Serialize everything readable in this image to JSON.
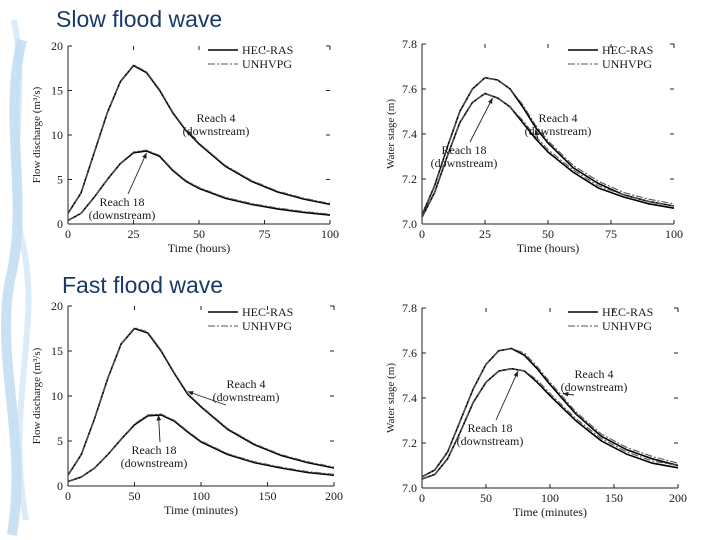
{
  "headings": {
    "slow": "Slow flood wave",
    "fast": "Fast flood wave"
  },
  "colors": {
    "heading": "#1a3a66",
    "background_swirl": "#9fc7ea",
    "hec_ras": "#000000",
    "unhvpg": "#555555"
  },
  "chart_data": [
    {
      "type": "line",
      "id": "slow-discharge",
      "xlabel": "Time (hours)",
      "ylabel": "Flow discharge (m³/s)",
      "xlim": [
        0,
        100
      ],
      "ylim": [
        0,
        20
      ],
      "xticks": [
        0,
        25,
        50,
        75,
        100
      ],
      "yticks": [
        0,
        5,
        10,
        15,
        20
      ],
      "legend_position": "top-right",
      "series": [
        {
          "name": "HEC-RAS",
          "group": "Reach 4",
          "x": [
            0,
            5,
            10,
            15,
            20,
            25,
            30,
            35,
            40,
            45,
            50,
            60,
            70,
            80,
            90,
            100
          ],
          "y": [
            1.2,
            3.5,
            8,
            12.5,
            16,
            17.8,
            17,
            15,
            12.5,
            10.5,
            9,
            6.5,
            4.8,
            3.6,
            2.8,
            2.2
          ]
        },
        {
          "name": "UNHVPG",
          "group": "Reach 4",
          "x": [
            0,
            5,
            10,
            15,
            20,
            25,
            30,
            35,
            40,
            45,
            50,
            60,
            70,
            80,
            90,
            100
          ],
          "y": [
            1.2,
            3.5,
            8,
            12.5,
            16,
            17.9,
            17.1,
            15.1,
            12.6,
            10.6,
            9.1,
            6.6,
            4.9,
            3.7,
            2.9,
            2.3
          ]
        },
        {
          "name": "HEC-RAS",
          "group": "Reach 18",
          "x": [
            0,
            5,
            10,
            15,
            20,
            25,
            30,
            35,
            40,
            45,
            50,
            60,
            70,
            80,
            90,
            100
          ],
          "y": [
            0.4,
            1.2,
            3,
            5,
            6.8,
            8,
            8.2,
            7.6,
            6,
            4.8,
            4,
            2.9,
            2.2,
            1.7,
            1.3,
            1
          ]
        },
        {
          "name": "UNHVPG",
          "group": "Reach 18",
          "x": [
            0,
            5,
            10,
            15,
            20,
            25,
            30,
            35,
            40,
            45,
            50,
            60,
            70,
            80,
            90,
            100
          ],
          "y": [
            0.4,
            1.2,
            3,
            5,
            6.8,
            8.1,
            8.3,
            7.7,
            6.1,
            4.9,
            4.1,
            3,
            2.3,
            1.8,
            1.4,
            1.1
          ]
        }
      ],
      "legend": [
        "HEC-RAS",
        "UNHVPG"
      ],
      "annotations": [
        {
          "text": [
            "Reach 4",
            "(downstream)"
          ],
          "target": [
            45,
            10.5
          ]
        },
        {
          "text": [
            "Reach 18",
            "(downstream)"
          ],
          "target": [
            30,
            8
          ]
        }
      ]
    },
    {
      "type": "line",
      "id": "slow-stage",
      "xlabel": "Time (hours)",
      "ylabel": "Water stage (m)",
      "xlim": [
        0,
        100
      ],
      "ylim": [
        7.0,
        7.8
      ],
      "xticks": [
        0,
        25,
        50,
        75,
        100
      ],
      "yticks": [
        7.0,
        7.2,
        7.4,
        7.6,
        7.8
      ],
      "legend_position": "top-right",
      "series": [
        {
          "name": "HEC-RAS",
          "group": "Reach 4",
          "x": [
            0,
            5,
            10,
            15,
            20,
            25,
            30,
            35,
            40,
            45,
            50,
            60,
            70,
            80,
            90,
            100
          ],
          "y": [
            7.04,
            7.17,
            7.34,
            7.5,
            7.6,
            7.65,
            7.64,
            7.6,
            7.52,
            7.43,
            7.36,
            7.25,
            7.18,
            7.13,
            7.1,
            7.08
          ]
        },
        {
          "name": "UNHVPG",
          "group": "Reach 4",
          "x": [
            0,
            5,
            10,
            15,
            20,
            25,
            30,
            35,
            40,
            45,
            50,
            60,
            70,
            80,
            90,
            100
          ],
          "y": [
            7.04,
            7.17,
            7.34,
            7.5,
            7.6,
            7.65,
            7.64,
            7.6,
            7.53,
            7.44,
            7.37,
            7.26,
            7.19,
            7.14,
            7.11,
            7.09
          ]
        },
        {
          "name": "HEC-RAS",
          "group": "Reach 18",
          "x": [
            0,
            5,
            10,
            15,
            20,
            25,
            30,
            35,
            40,
            45,
            50,
            60,
            70,
            80,
            90,
            100
          ],
          "y": [
            7.03,
            7.14,
            7.3,
            7.45,
            7.54,
            7.58,
            7.56,
            7.52,
            7.45,
            7.38,
            7.32,
            7.23,
            7.16,
            7.12,
            7.09,
            7.07
          ]
        },
        {
          "name": "UNHVPG",
          "group": "Reach 18",
          "x": [
            0,
            5,
            10,
            15,
            20,
            25,
            30,
            35,
            40,
            45,
            50,
            60,
            70,
            80,
            90,
            100
          ],
          "y": [
            7.03,
            7.14,
            7.3,
            7.45,
            7.54,
            7.58,
            7.56,
            7.52,
            7.46,
            7.39,
            7.33,
            7.24,
            7.17,
            7.13,
            7.1,
            7.08
          ]
        }
      ],
      "legend": [
        "HEC-RAS",
        "UNHVPG"
      ],
      "annotations": [
        {
          "text": [
            "Reach 4",
            "(downstream)"
          ],
          "target": [
            45,
            7.42
          ]
        },
        {
          "text": [
            "Reach 18",
            "(downstream)"
          ],
          "target": [
            28,
            7.56
          ]
        }
      ]
    },
    {
      "type": "line",
      "id": "fast-discharge",
      "xlabel": "Time (minutes)",
      "ylabel": "Flow discharge (m³/s)",
      "xlim": [
        0,
        200
      ],
      "ylim": [
        0,
        20
      ],
      "xticks": [
        0,
        50,
        100,
        150,
        200
      ],
      "yticks": [
        0,
        5,
        10,
        15,
        20
      ],
      "legend_position": "top-right",
      "series": [
        {
          "name": "HEC-RAS",
          "group": "Reach 4",
          "x": [
            0,
            10,
            20,
            30,
            40,
            50,
            60,
            70,
            80,
            90,
            100,
            120,
            140,
            160,
            180,
            200
          ],
          "y": [
            1.2,
            3.5,
            7.5,
            12,
            15.8,
            17.5,
            17,
            15,
            12.5,
            10.2,
            8.8,
            6.3,
            4.6,
            3.4,
            2.6,
            2
          ]
        },
        {
          "name": "UNHVPG",
          "group": "Reach 4",
          "x": [
            0,
            10,
            20,
            30,
            40,
            50,
            60,
            70,
            80,
            90,
            100,
            120,
            140,
            160,
            180,
            200
          ],
          "y": [
            1.2,
            3.5,
            7.5,
            12,
            15.8,
            17.6,
            17.1,
            15.1,
            12.6,
            10.3,
            8.9,
            6.4,
            4.7,
            3.5,
            2.7,
            2.1
          ]
        },
        {
          "name": "HEC-RAS",
          "group": "Reach 18",
          "x": [
            0,
            10,
            20,
            30,
            40,
            50,
            60,
            70,
            80,
            90,
            100,
            120,
            140,
            160,
            180,
            200
          ],
          "y": [
            0.5,
            1,
            2,
            3.5,
            5.2,
            6.8,
            7.8,
            7.9,
            7.2,
            6,
            4.9,
            3.5,
            2.6,
            2,
            1.5,
            1.2
          ]
        },
        {
          "name": "UNHVPG",
          "group": "Reach 18",
          "x": [
            0,
            10,
            20,
            30,
            40,
            50,
            60,
            70,
            80,
            90,
            100,
            120,
            140,
            160,
            180,
            200
          ],
          "y": [
            0.5,
            1,
            2,
            3.5,
            5.2,
            6.9,
            7.9,
            8,
            7.3,
            6.1,
            5,
            3.6,
            2.7,
            2.1,
            1.6,
            1.3
          ]
        }
      ],
      "legend": [
        "HEC-RAS",
        "UNHVPG"
      ],
      "annotations": [
        {
          "text": [
            "Reach 4",
            "(downstream)"
          ],
          "target": [
            90,
            10.5
          ]
        },
        {
          "text": [
            "Reach 18",
            "(downstream)"
          ],
          "target": [
            68,
            7.9
          ]
        }
      ]
    },
    {
      "type": "line",
      "id": "fast-stage",
      "xlabel": "Time (minutes)",
      "ylabel": "Water stage (m)",
      "xlim": [
        0,
        200
      ],
      "ylim": [
        7.0,
        7.8
      ],
      "xticks": [
        0,
        50,
        100,
        150,
        200
      ],
      "yticks": [
        7.0,
        7.2,
        7.4,
        7.6,
        7.8
      ],
      "legend_position": "top-right",
      "series": [
        {
          "name": "HEC-RAS",
          "group": "Reach 4",
          "x": [
            0,
            10,
            20,
            30,
            40,
            50,
            60,
            70,
            80,
            90,
            100,
            120,
            140,
            160,
            180,
            200
          ],
          "y": [
            7.05,
            7.08,
            7.16,
            7.3,
            7.44,
            7.55,
            7.61,
            7.62,
            7.59,
            7.53,
            7.46,
            7.33,
            7.23,
            7.17,
            7.13,
            7.1
          ]
        },
        {
          "name": "UNHVPG",
          "group": "Reach 4",
          "x": [
            0,
            10,
            20,
            30,
            40,
            50,
            60,
            70,
            80,
            90,
            100,
            120,
            140,
            160,
            180,
            200
          ],
          "y": [
            7.05,
            7.08,
            7.16,
            7.3,
            7.44,
            7.55,
            7.61,
            7.62,
            7.6,
            7.54,
            7.47,
            7.34,
            7.24,
            7.18,
            7.14,
            7.11
          ]
        },
        {
          "name": "HEC-RAS",
          "group": "Reach 18",
          "x": [
            0,
            10,
            20,
            30,
            40,
            50,
            60,
            70,
            80,
            90,
            100,
            120,
            140,
            160,
            180,
            200
          ],
          "y": [
            7.04,
            7.06,
            7.13,
            7.25,
            7.38,
            7.47,
            7.52,
            7.53,
            7.52,
            7.47,
            7.41,
            7.3,
            7.21,
            7.15,
            7.11,
            7.09
          ]
        },
        {
          "name": "UNHVPG",
          "group": "Reach 18",
          "x": [
            0,
            10,
            20,
            30,
            40,
            50,
            60,
            70,
            80,
            90,
            100,
            120,
            140,
            160,
            180,
            200
          ],
          "y": [
            7.04,
            7.06,
            7.13,
            7.25,
            7.38,
            7.47,
            7.52,
            7.53,
            7.52,
            7.48,
            7.42,
            7.31,
            7.22,
            7.16,
            7.12,
            7.1
          ]
        }
      ],
      "legend": [
        "HEC-RAS",
        "UNHVPG"
      ],
      "annotations": [
        {
          "text": [
            "Reach 4",
            "(downstream)"
          ],
          "target": [
            110,
            7.42
          ]
        },
        {
          "text": [
            "Reach 18",
            "(downstream)"
          ],
          "target": [
            75,
            7.52
          ]
        }
      ]
    }
  ]
}
